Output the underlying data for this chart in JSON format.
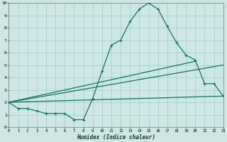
{
  "bg_color": "#cde8e4",
  "grid_color": "#a8d0cc",
  "line_color": "#1a6e64",
  "xlim": [
    0,
    23
  ],
  "ylim": [
    0,
    10
  ],
  "xticks": [
    0,
    1,
    2,
    3,
    4,
    5,
    6,
    7,
    8,
    9,
    10,
    11,
    12,
    13,
    14,
    15,
    16,
    17,
    18,
    19,
    20,
    21,
    22,
    23
  ],
  "yticks": [
    0,
    1,
    2,
    3,
    4,
    5,
    6,
    7,
    8,
    9,
    10
  ],
  "main_x": [
    0,
    1,
    2,
    3,
    4,
    5,
    6,
    7,
    8,
    9,
    10,
    11,
    12,
    13,
    14,
    15,
    16,
    17,
    18,
    19,
    20,
    21,
    22,
    23
  ],
  "main_y": [
    2.0,
    1.5,
    1.5,
    1.3,
    1.1,
    1.1,
    1.1,
    0.6,
    0.6,
    2.3,
    4.5,
    6.6,
    7.0,
    8.5,
    9.5,
    10.0,
    9.5,
    8.1,
    6.8,
    5.8,
    5.4,
    3.5,
    3.5,
    2.5
  ],
  "line1_x": [
    0,
    20
  ],
  "line1_y": [
    2.0,
    5.3
  ],
  "line2_x": [
    0,
    23
  ],
  "line2_y": [
    2.0,
    5.0
  ],
  "line3_x": [
    0,
    23
  ],
  "line3_y": [
    2.0,
    2.5
  ],
  "xlabel": "Humidex (Indice chaleur)",
  "linewidth": 0.9,
  "markersize": 3.5,
  "marker": "+"
}
